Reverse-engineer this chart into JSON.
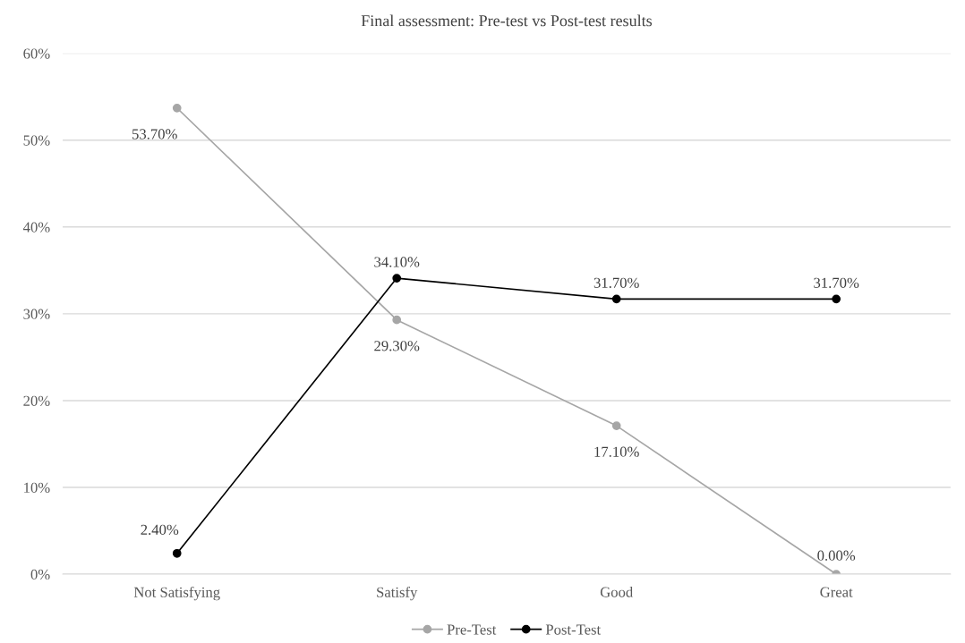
{
  "chart_data": {
    "type": "line",
    "title": "Final assessment: Pre-test vs Post-test results",
    "categories": [
      "Not Satisfying",
      "Satisfy",
      "Good",
      "Great"
    ],
    "series": [
      {
        "name": "Pre-Test",
        "color": "#a6a6a6",
        "values": [
          53.7,
          29.3,
          17.1,
          0.0
        ],
        "value_labels": [
          "53.70%",
          "29.30%",
          "17.10%",
          "0.00%"
        ]
      },
      {
        "name": "Post-Test",
        "color": "#000000",
        "values": [
          2.4,
          34.1,
          31.7,
          31.7
        ],
        "value_labels": [
          "2.40%",
          "34.10%",
          "31.70%",
          "31.70%"
        ]
      }
    ],
    "ylim": [
      0,
      60
    ],
    "yticks": [
      {
        "value": 0,
        "label": "0%"
      },
      {
        "value": 10,
        "label": "10%"
      },
      {
        "value": 20,
        "label": "20%"
      },
      {
        "value": 30,
        "label": "30%"
      },
      {
        "value": 40,
        "label": "40%"
      },
      {
        "value": 50,
        "label": "50%"
      },
      {
        "value": 60,
        "label": "60%"
      }
    ],
    "grid": "y",
    "legend": "bottom",
    "marker": "circle",
    "line_style": "solid"
  }
}
